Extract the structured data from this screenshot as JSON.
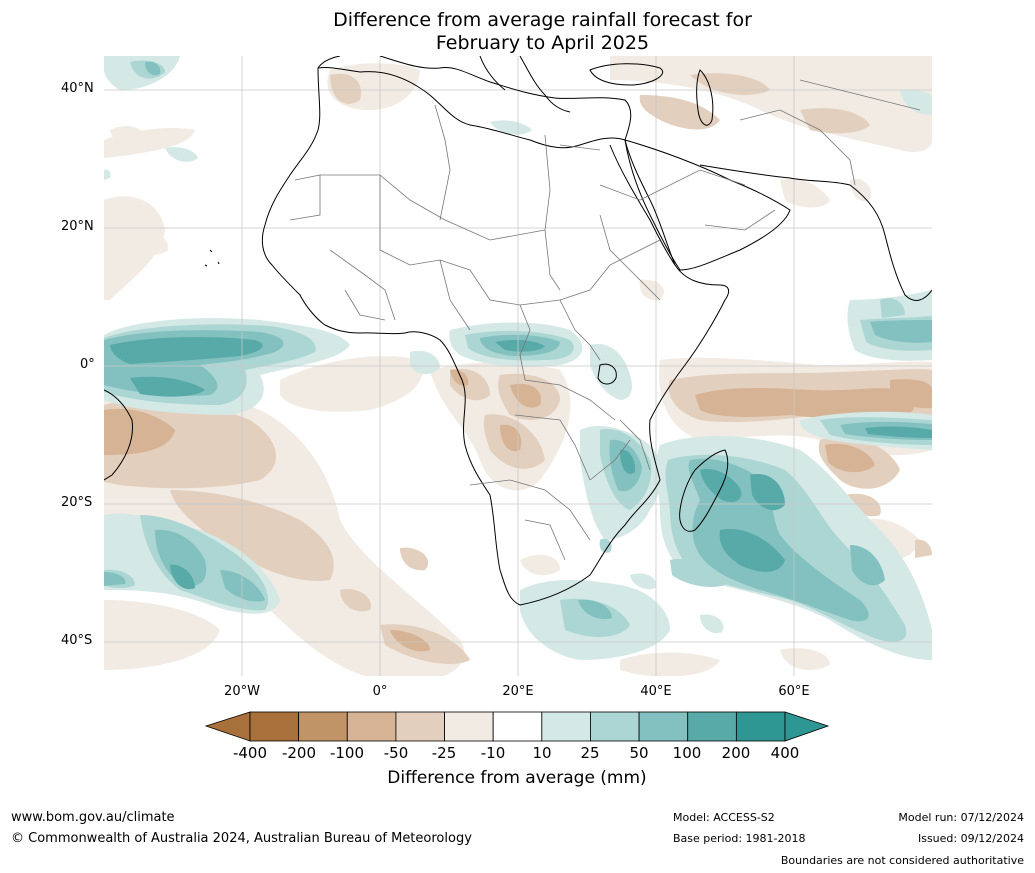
{
  "title": {
    "line1": "Difference from average rainfall forecast for",
    "line2": "February to April 2025"
  },
  "map": {
    "projection": "lat-lon",
    "region": "Africa",
    "grid_lines": true,
    "lat_ticks": [
      "40°N",
      "20°N",
      "0°",
      "20°S",
      "40°S"
    ],
    "lon_ticks": [
      "20°W",
      "0°",
      "20°E",
      "40°E",
      "60°E"
    ]
  },
  "colorbar": {
    "title": "Difference from average (mm)",
    "tick_labels": [
      "-400",
      "-200",
      "-100",
      "-50",
      "-25",
      "-10",
      "10",
      "25",
      "50",
      "100",
      "200",
      "400"
    ],
    "colors": [
      "#a8703a",
      "#c19468",
      "#d5b394",
      "#e3cfbd",
      "#f1ebe4",
      "#ffffff",
      "#d4e8e6",
      "#acd6d3",
      "#82c1bf",
      "#58aaa8",
      "#2e9793"
    ],
    "low_extend_color": "#a8703a",
    "high_extend_color": "#2e9793"
  },
  "footer": {
    "website": "www.bom.gov.au/climate",
    "copyright": "© Commonwealth of Australia 2024, Australian Bureau of Meteorology",
    "model": "Model: ACCESS-S2",
    "base_period": "Base period: 1981-2018",
    "model_run": "Model run: 07/12/2024",
    "issued": "Issued: 09/12/2024",
    "disclaimer": "Boundaries are not considered authoritative"
  }
}
